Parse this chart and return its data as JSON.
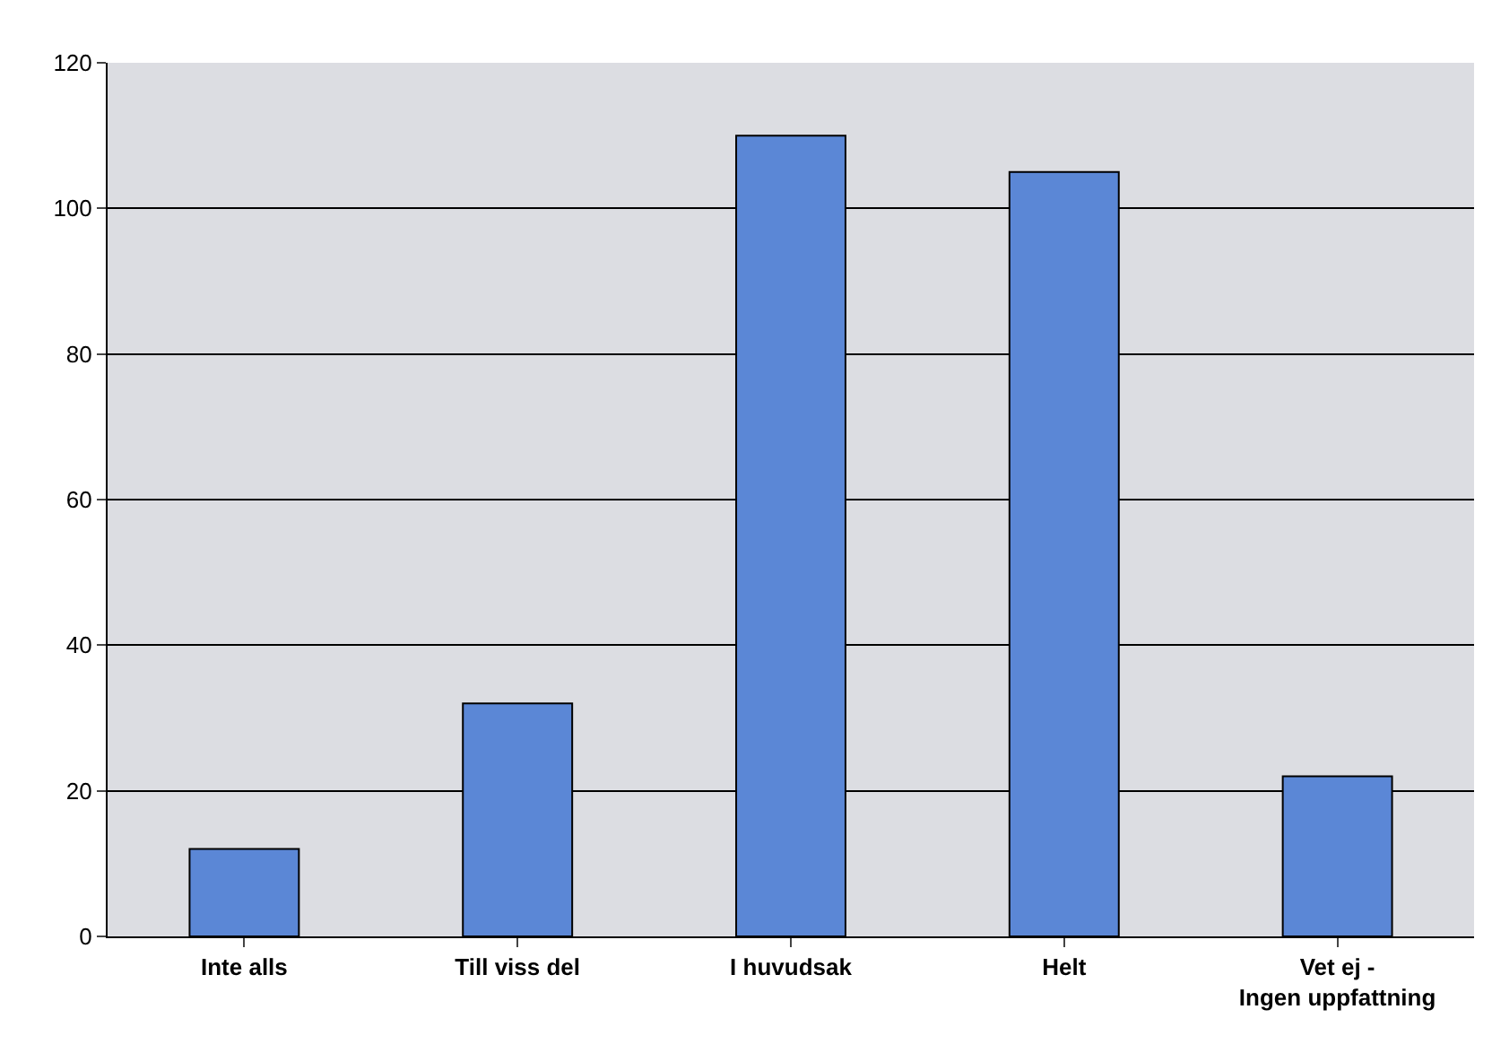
{
  "chart_data": {
    "type": "bar",
    "categories": [
      "Inte alls",
      "Till viss del",
      "I huvudsak",
      "Helt",
      "Vet ej - Ingen uppfattning"
    ],
    "values": [
      12,
      32,
      110,
      105,
      22
    ],
    "color": "#5b87d6",
    "ylim": [
      0,
      120
    ],
    "yticks": [
      0,
      20,
      40,
      60,
      80,
      100,
      120
    ],
    "grid": "y",
    "legend": false
  }
}
